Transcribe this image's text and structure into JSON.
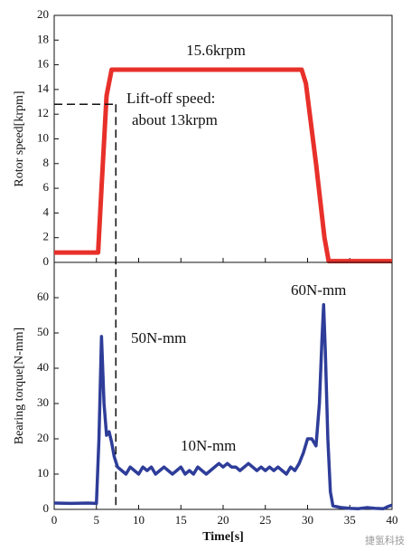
{
  "chart_data": [
    {
      "type": "line",
      "y_label": "Rotor speed[krpm]",
      "color": "#e8302a",
      "x": [
        0,
        5.2,
        5.6,
        6.2,
        6.8,
        29.3,
        29.8,
        31,
        32,
        32.5,
        40
      ],
      "values": [
        0.8,
        0.8,
        6,
        13.5,
        15.6,
        15.6,
        14.5,
        8,
        2,
        0.1,
        0.1
      ],
      "xlim": [
        0,
        40
      ],
      "xticks": [
        0,
        5,
        10,
        15,
        20,
        25,
        30,
        35,
        40
      ],
      "ylim": [
        0,
        20
      ],
      "yticks": [
        0,
        2,
        4,
        6,
        8,
        10,
        12,
        14,
        16,
        18,
        20
      ],
      "annotations": [
        "15.6krpm",
        "Lift-off  speed:",
        "about 13krpm"
      ],
      "reference_line": {
        "x": 7.3,
        "y": 12.8
      }
    },
    {
      "type": "line",
      "y_label": "Bearing torque[N-mm]",
      "x_label": "Time[s]",
      "color": "#2e3d99",
      "x": [
        0,
        2,
        4,
        5,
        5.3,
        5.6,
        5.9,
        6.2,
        6.5,
        6.8,
        7.1,
        7.5,
        8,
        8.5,
        9,
        9.5,
        10,
        10.5,
        11,
        11.5,
        12,
        12.5,
        13,
        13.5,
        14,
        14.5,
        15,
        15.5,
        16,
        16.5,
        17,
        17.5,
        18,
        18.5,
        19,
        19.5,
        20,
        20.5,
        21,
        21.5,
        22,
        22.5,
        23,
        23.5,
        24,
        24.5,
        25,
        25.5,
        26,
        26.5,
        27,
        27.5,
        28,
        28.5,
        29,
        29.5,
        30,
        30.5,
        31,
        31.4,
        31.7,
        31.9,
        32.1,
        32.4,
        32.7,
        33,
        34,
        35,
        36,
        37,
        38,
        39,
        39.5,
        40
      ],
      "values": [
        1.8,
        1.7,
        1.8,
        1.7,
        20,
        49,
        30,
        21,
        22,
        19,
        15,
        12,
        11,
        10,
        12,
        11,
        10,
        12,
        11,
        12,
        10,
        11,
        12,
        11,
        10,
        11,
        12,
        10,
        11,
        10,
        12,
        11,
        10,
        11,
        12,
        13,
        12,
        13,
        12,
        12,
        11,
        12,
        13,
        12,
        11,
        12,
        11,
        12,
        11,
        12,
        11,
        10,
        12,
        11,
        13,
        16,
        20,
        20,
        18,
        30,
        48,
        58,
        45,
        20,
        5,
        1,
        0.5,
        0.3,
        0.2,
        0.5,
        0.3,
        0.2,
        0.8,
        1.2
      ],
      "xlim": [
        0,
        40
      ],
      "xticks": [
        0,
        5,
        10,
        15,
        20,
        25,
        30,
        35,
        40
      ],
      "ylim": [
        0,
        70
      ],
      "yticks": [
        0,
        10,
        20,
        30,
        40,
        50,
        60
      ],
      "annotations": [
        "50N-mm",
        "10N-mm",
        "60N-mm"
      ]
    }
  ],
  "watermark": "捷氢科技"
}
